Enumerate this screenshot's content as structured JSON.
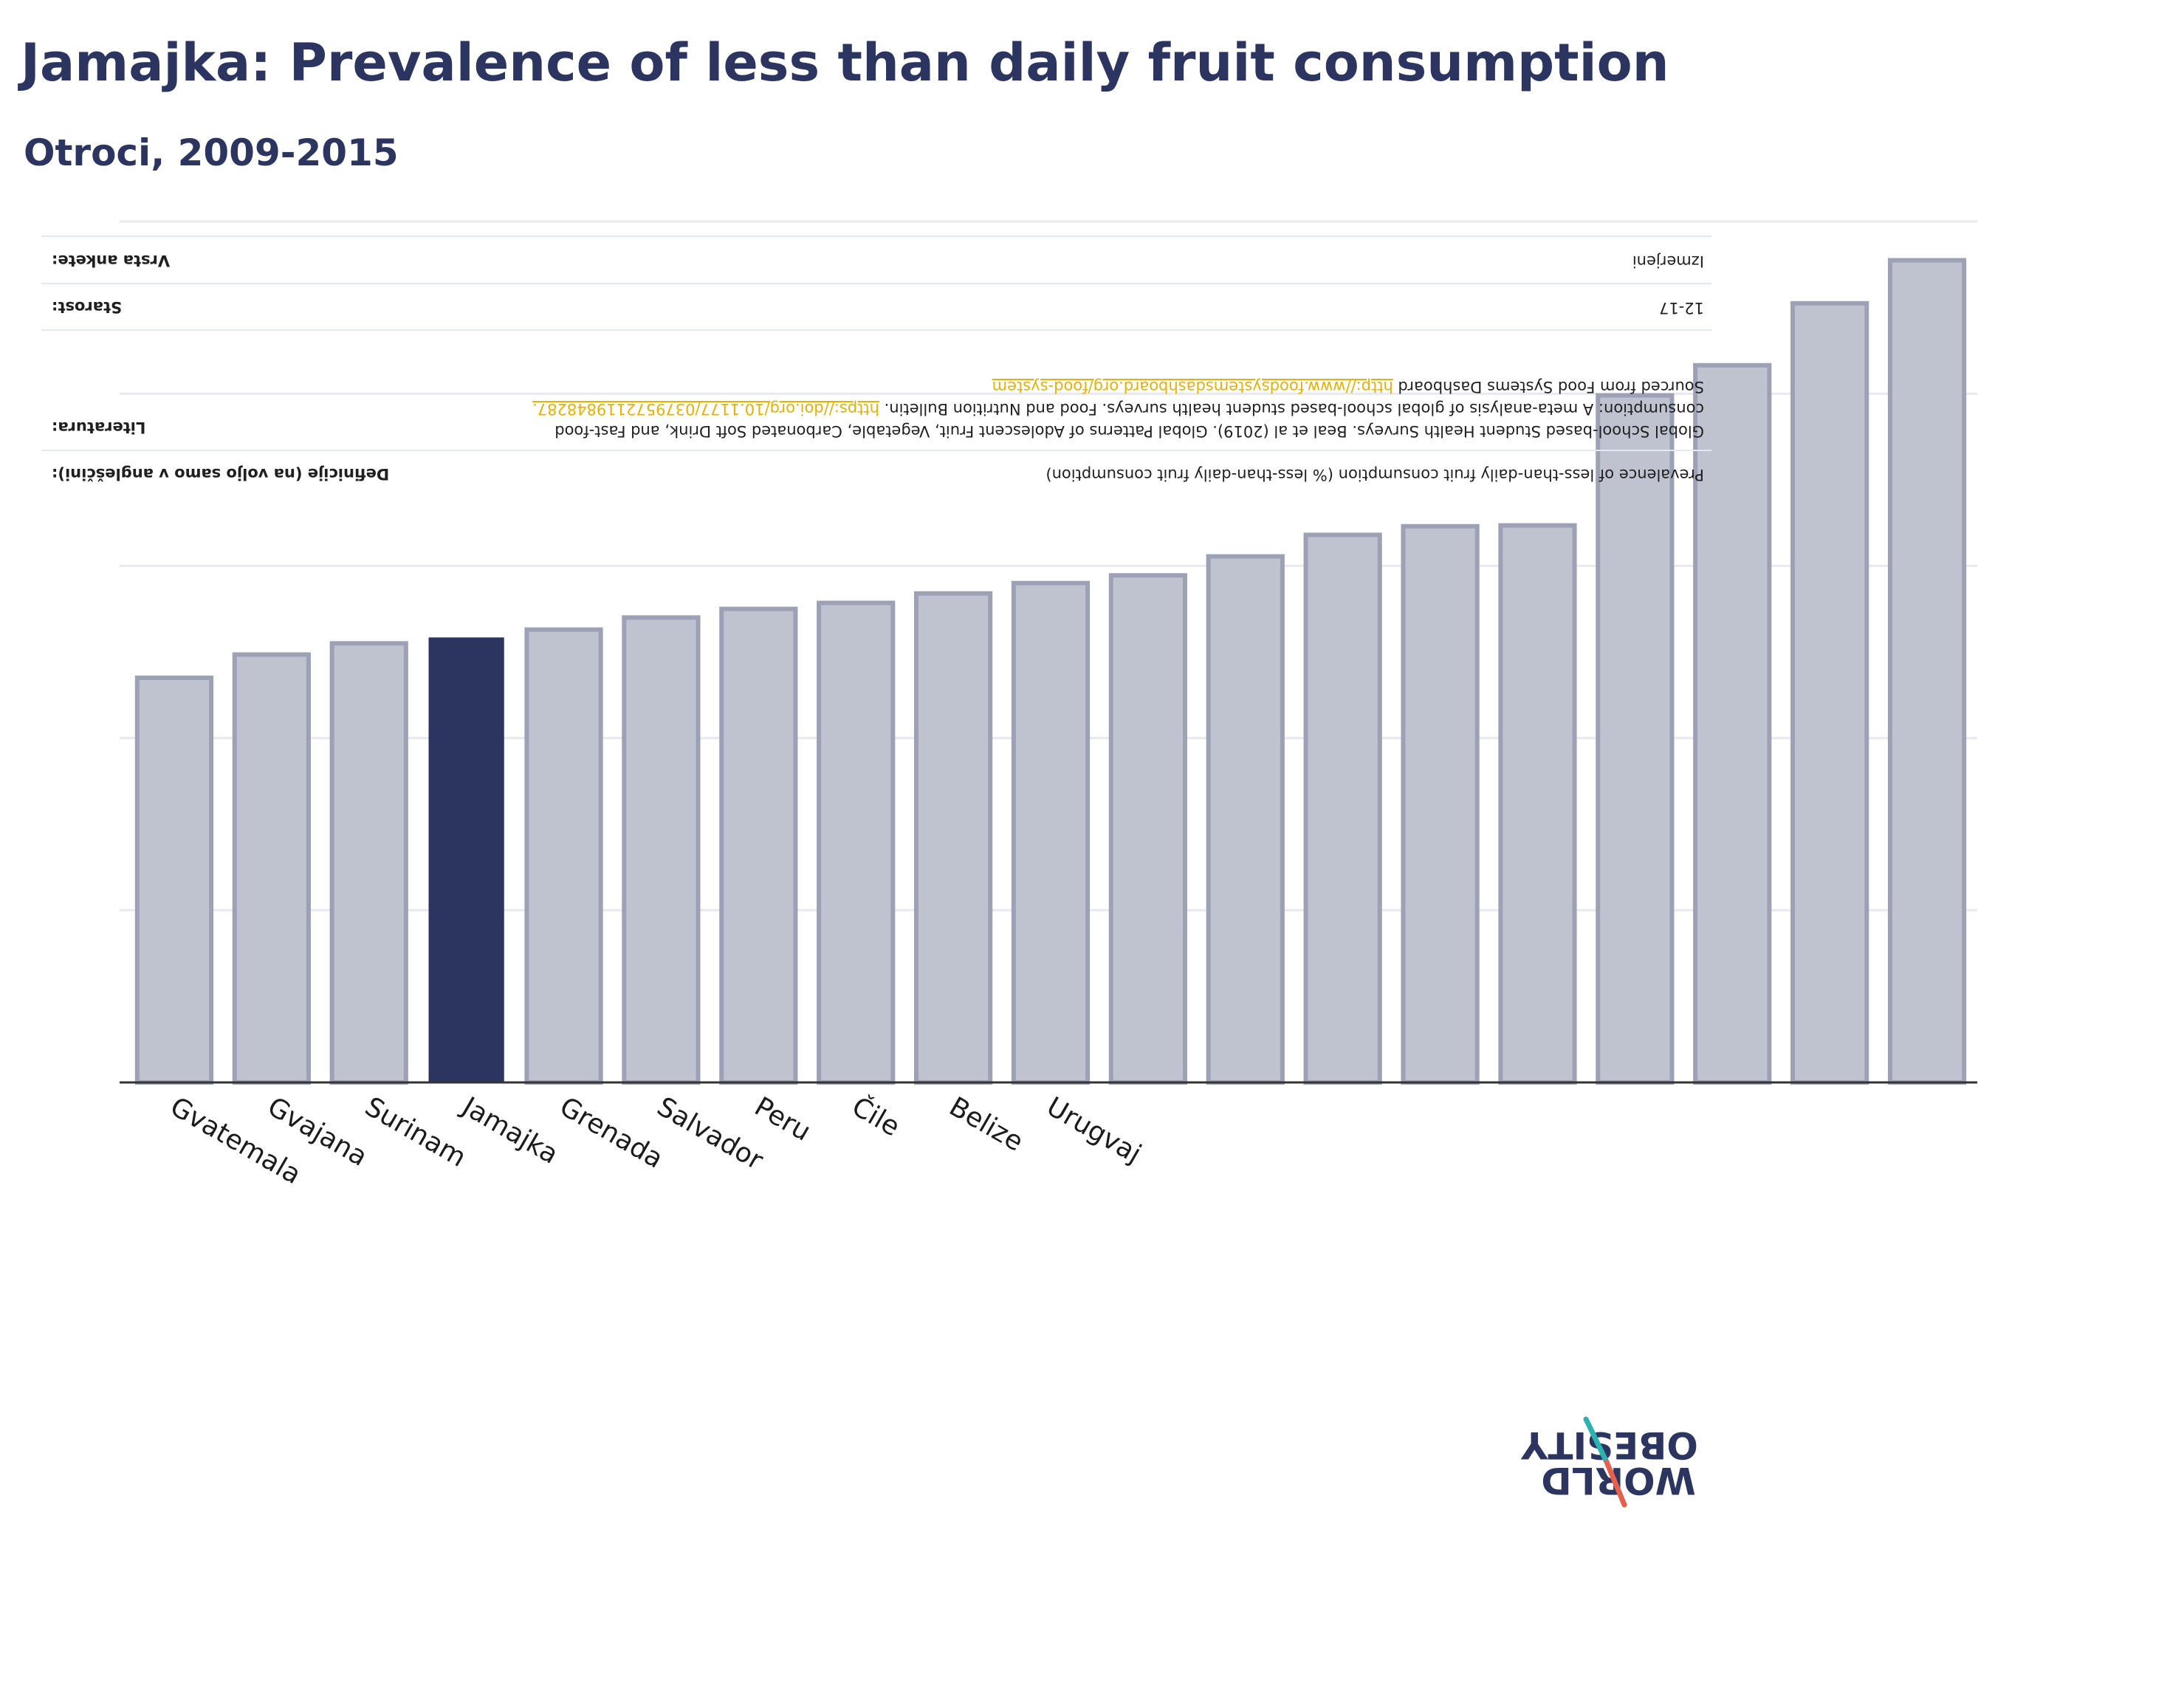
{
  "title": "Jamajka: Prevalence of less than daily fruit consumption",
  "subtitle": "Otroci, 2009-2015",
  "colors": {
    "highlight": "#2b3560",
    "bar": "#bfc3d0",
    "bar_border": "#9ca1b6",
    "axis": "#333333",
    "grid": "#e8e9ef",
    "link": "#e8b100"
  },
  "chart_data": {
    "type": "bar",
    "categories": [
      "Gvatemala",
      "Gvajana",
      "Surinam",
      "Jamajka",
      "Grenada",
      "Salvador",
      "Peru",
      "Čile",
      "Belize",
      "Urugvaj",
      "",
      "",
      "",
      "",
      "",
      "",
      "",
      "",
      ""
    ],
    "values": [
      47.0,
      49.7,
      51.0,
      51.6,
      52.6,
      54.0,
      55.0,
      55.7,
      56.8,
      58.0,
      58.9,
      61.1,
      63.6,
      64.6,
      64.7,
      79.8,
      83.3,
      90.5,
      95.5
    ],
    "highlight_index": 3,
    "ylim": [
      0,
      100
    ],
    "grid": true,
    "gridlines": [
      0,
      20,
      40,
      60,
      80,
      100
    ],
    "xlabel": "",
    "ylabel": ""
  },
  "info_table": {
    "rows": [
      {
        "label": "Definicije (na voljo samo v angleščini):",
        "value": "Prevalence of less-than-daily fruit consumption (% less-than-daily fruit consumption)"
      },
      {
        "label": "Literatura:",
        "value": "Global School-based Student Health Surveys. Beal et al (2019). Global Patterns of Adolescent Fruit, Vegetable, Carbonated Soft Drink, and Fast-food consumption: A meta-analysis of global school-based student health surveys. Food and Nutrition Bulletin.",
        "link1": "https://doi.org/10.1177/0379572119848287.",
        "value2": " Sourced from Food Systems Dashboard ",
        "link2": "http://www.foodsystemsdashboard.org/food-system"
      },
      {
        "label": "Starost:",
        "value": "12-17"
      },
      {
        "label": "Vrsta ankete:",
        "value": "Izmerjeni"
      }
    ]
  },
  "logo": {
    "line1": "OBESITY",
    "line2": "WORLD"
  }
}
